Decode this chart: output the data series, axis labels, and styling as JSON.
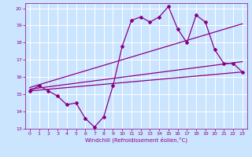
{
  "background_color": "#cce5ff",
  "grid_color": "#ffffff",
  "line_color": "#880088",
  "xlabel": "Windchill (Refroidissement éolien,°C)",
  "xlim": [
    -0.5,
    23.5
  ],
  "ylim": [
    13,
    20.3
  ],
  "yticks": [
    13,
    14,
    15,
    16,
    17,
    18,
    19,
    20
  ],
  "xticks": [
    0,
    1,
    2,
    3,
    4,
    5,
    6,
    7,
    8,
    9,
    10,
    11,
    12,
    13,
    14,
    15,
    16,
    17,
    18,
    19,
    20,
    21,
    22,
    23
  ],
  "series_main_x": [
    0,
    1,
    2,
    3,
    4,
    5,
    6,
    7,
    8,
    9,
    10,
    11,
    12,
    13,
    14,
    15,
    16,
    17,
    18,
    19,
    20,
    21,
    22,
    23
  ],
  "series_main_y": [
    15.2,
    15.5,
    15.2,
    14.9,
    14.4,
    14.5,
    13.6,
    13.1,
    13.7,
    15.5,
    17.8,
    19.3,
    19.5,
    19.2,
    19.5,
    20.1,
    18.8,
    18.0,
    19.6,
    19.2,
    17.6,
    16.8,
    16.8,
    16.3
  ],
  "series_line1_x": [
    0,
    23
  ],
  "series_line1_y": [
    15.3,
    16.9
  ],
  "series_line2_x": [
    0,
    23
  ],
  "series_line2_y": [
    15.2,
    16.3
  ],
  "series_line3_x": [
    0,
    23
  ],
  "series_line3_y": [
    15.4,
    19.1
  ]
}
